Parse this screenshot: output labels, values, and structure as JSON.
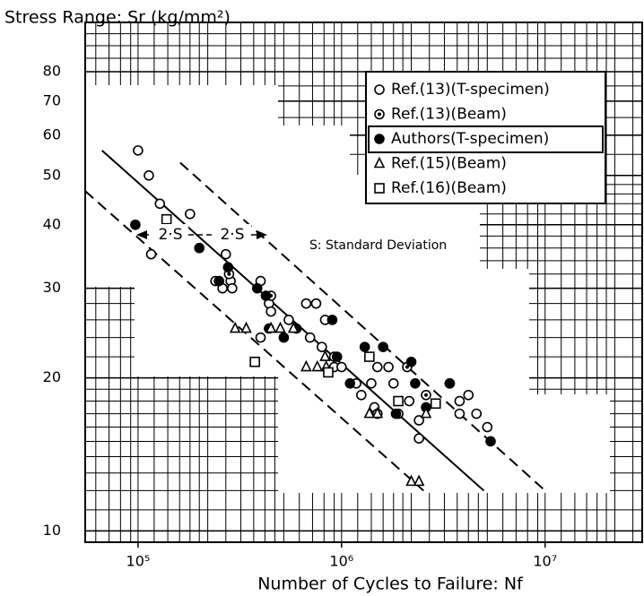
{
  "chart_data": {
    "type": "scatter",
    "title": "Stress Range: Sr (kg/mm²)",
    "x_label": "Number of Cycles to Failure: Nf",
    "log_x": true,
    "log_y": true,
    "grid": true,
    "xlim": [
      55000,
      30000000
    ],
    "ylim": [
      9.5,
      100
    ],
    "xticks": [
      {
        "value": 100000,
        "label": "10⁵"
      },
      {
        "value": 1000000,
        "label": "10⁶"
      },
      {
        "value": 10000000,
        "label": "10⁷"
      }
    ],
    "yticks": [
      10,
      20,
      30,
      40,
      50,
      60,
      70,
      80
    ],
    "legend": "top-right",
    "series": [
      {
        "name": "Ref.(13)(T-specimen)",
        "marker": "open-circle",
        "color": "#000000",
        "x": [
          100000,
          113000,
          128000,
          180000,
          116000,
          270000,
          285000,
          260000,
          290000,
          400000,
          440000,
          450000,
          400000,
          550000,
          670000,
          750000,
          830000,
          700000,
          800000,
          920000,
          1000000,
          1180000,
          1250000,
          1400000,
          1500000,
          1700000,
          1800000,
          1450000,
          1500000,
          1900000,
          2150000,
          2400000,
          2400000,
          3400000,
          3800000,
          3800000,
          4200000,
          4600000,
          5200000
        ],
        "values": [
          56,
          50,
          44,
          42,
          35,
          35,
          31,
          30,
          30,
          31,
          28,
          27,
          24,
          26,
          28,
          28,
          26,
          24,
          23,
          21,
          21,
          19.5,
          18.5,
          19.5,
          21,
          21,
          19.5,
          17.5,
          17,
          17,
          18,
          16.5,
          15.2,
          19.5,
          18,
          17,
          18.5,
          17,
          16
        ]
      },
      {
        "name": "Ref.(13)(Beam)",
        "marker": "dot-circle",
        "color": "#000000",
        "x": [
          240000,
          280000,
          450000,
          920000,
          2100000,
          2600000
        ],
        "values": [
          31,
          32,
          29,
          22,
          21,
          18.5
        ]
      },
      {
        "name": "Authors(T-specimen)",
        "marker": "filled-circle",
        "color": "#000000",
        "x": [
          97000,
          200000,
          277000,
          250000,
          385000,
          425000,
          440000,
          520000,
          600000,
          900000,
          950000,
          1100000,
          1300000,
          1600000,
          1850000,
          2200000,
          2300000,
          2600000,
          3400000,
          5400000
        ],
        "values": [
          40,
          36,
          33,
          31,
          30,
          29,
          25,
          24,
          25,
          26,
          22,
          19.5,
          23,
          23,
          17,
          21.5,
          19.5,
          17.5,
          19.5,
          15
        ]
      },
      {
        "name": "Ref.(15)(Beam)",
        "marker": "triangle",
        "color": "#000000",
        "x": [
          300000,
          340000,
          450000,
          500000,
          580000,
          670000,
          760000,
          840000,
          1370000,
          1500000,
          2600000,
          2200000,
          2400000,
          830000
        ],
        "values": [
          25,
          25,
          25,
          25,
          25,
          21,
          21,
          21,
          17,
          17,
          17,
          12.5,
          12.5,
          22
        ]
      },
      {
        "name": "Ref.(16)(Beam)",
        "marker": "square",
        "color": "#000000",
        "x": [
          138000,
          375000,
          860000,
          1370000,
          1900000,
          2900000
        ],
        "values": [
          41,
          21.5,
          20.5,
          22,
          18,
          17.8
        ]
      }
    ],
    "fit_lines": [
      {
        "style": "solid",
        "x": [
          66500,
          5000000
        ],
        "y": [
          56,
          12
        ]
      },
      {
        "style": "dashed",
        "x": [
          161000,
          10000000
        ],
        "y": [
          53,
          12
        ]
      },
      {
        "style": "dashed",
        "x": [
          55000,
          2530000
        ],
        "y": [
          46.6,
          12
        ]
      }
    ],
    "annotations": [
      "2·S",
      "2·S",
      "S: Standard Deviation"
    ]
  }
}
